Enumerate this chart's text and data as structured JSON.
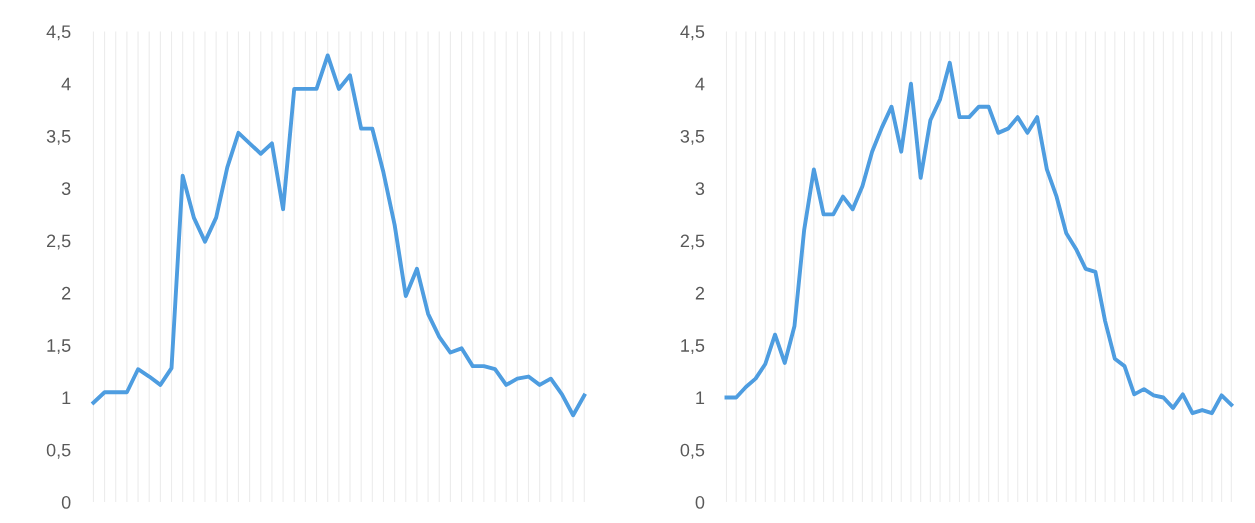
{
  "chart_data": [
    {
      "type": "line",
      "categories": [
        null,
        null,
        null,
        null,
        null,
        null,
        null,
        null,
        null,
        null,
        null,
        null,
        null,
        null,
        null,
        null,
        null,
        null,
        null,
        null,
        null,
        null,
        null,
        null,
        null,
        null,
        null,
        null,
        null,
        null,
        null,
        null,
        null,
        null,
        null,
        null,
        null,
        null,
        null,
        null,
        null,
        null,
        null,
        null,
        null
      ],
      "series": [
        {
          "color": "#4e9de0",
          "values": [
            0.95,
            1.05,
            1.05,
            1.05,
            1.27,
            1.2,
            1.12,
            1.28,
            3.12,
            2.72,
            2.49,
            2.72,
            3.2,
            3.53,
            3.43,
            3.33,
            3.43,
            2.8,
            3.95,
            3.95,
            3.95,
            4.27,
            3.95,
            4.08,
            3.57,
            3.57,
            3.15,
            2.65,
            1.97,
            2.23,
            1.8,
            1.58,
            1.43,
            1.47,
            1.3,
            1.3,
            1.27,
            1.12,
            1.18,
            1.2,
            1.12,
            1.18,
            1.03,
            0.83,
            1.02
          ]
        }
      ],
      "ylim": [
        0,
        4.5
      ],
      "yticks": [
        0,
        {
          "value": 0.5,
          "label": "0,5"
        },
        1,
        {
          "value": 1.5,
          "label": "1,5"
        },
        2,
        {
          "value": 2.5,
          "label": "2,5"
        },
        3,
        {
          "value": 3.5,
          "label": "3,5"
        },
        4,
        {
          "value": 4.5,
          "label": "4,5"
        }
      ],
      "grid": "x",
      "legend": false,
      "marker": "none",
      "line_style": "solid"
    },
    {
      "type": "line",
      "categories": [
        null,
        null,
        null,
        null,
        null,
        null,
        null,
        null,
        null,
        null,
        null,
        null,
        null,
        null,
        null,
        null,
        null,
        null,
        null,
        null,
        null,
        null,
        null,
        null,
        null,
        null,
        null,
        null,
        null,
        null,
        null,
        null,
        null,
        null,
        null,
        null,
        null,
        null,
        null,
        null,
        null,
        null,
        null,
        null,
        null,
        null,
        null,
        null,
        null,
        null,
        null,
        null,
        null
      ],
      "series": [
        {
          "color": "#4e9de0",
          "values": [
            1.0,
            1.0,
            1.1,
            1.18,
            1.32,
            1.6,
            1.33,
            1.68,
            2.6,
            3.18,
            2.75,
            2.75,
            2.92,
            2.8,
            3.02,
            3.35,
            3.58,
            3.78,
            3.35,
            4.0,
            3.1,
            3.65,
            3.85,
            4.2,
            3.68,
            3.68,
            3.78,
            3.78,
            3.53,
            3.57,
            3.68,
            3.53,
            3.68,
            3.18,
            2.92,
            2.57,
            2.42,
            2.23,
            2.2,
            1.73,
            1.37,
            1.3,
            1.03,
            1.08,
            1.02,
            1.0,
            0.9,
            1.03,
            0.85,
            0.88,
            0.85,
            1.02,
            0.93
          ]
        }
      ],
      "ylim": [
        0,
        4.5
      ],
      "yticks": [
        0,
        {
          "value": 0.5,
          "label": "0,5"
        },
        1,
        {
          "value": 1.5,
          "label": "1,5"
        },
        2,
        {
          "value": 2.5,
          "label": "2,5"
        },
        3,
        {
          "value": 3.5,
          "label": "3,5"
        },
        4,
        {
          "value": 4.5,
          "label": "4,5"
        }
      ],
      "grid": "x",
      "legend": false,
      "marker": "none",
      "line_style": "solid"
    }
  ]
}
